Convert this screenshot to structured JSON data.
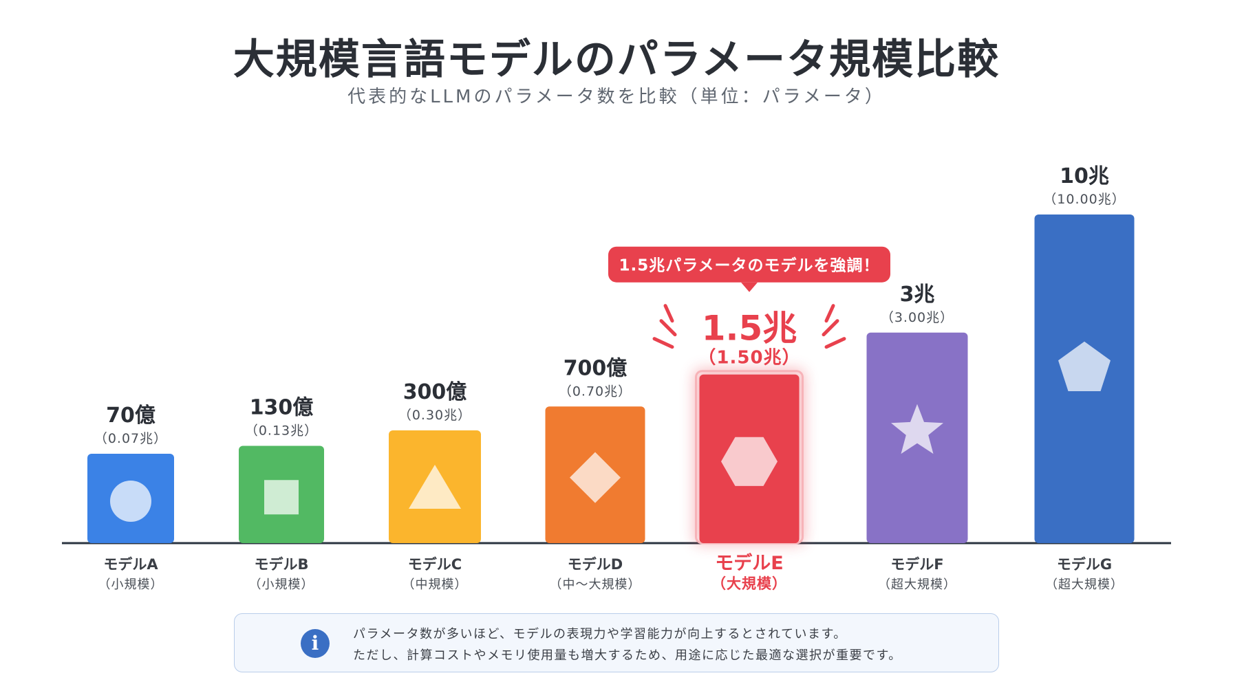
{
  "title": "大規模言語モデルのパラメータ規模比較",
  "subtitle": "代表的なLLMのパラメータ数を比較（単位：パラメータ）",
  "callout": "1.5兆パラメータのモデルを強調！",
  "note": {
    "icon": "info-icon",
    "line1": "パラメータ数が多いほど、モデルの表現力や学習能力が向上するとされています。",
    "line2": "ただし、計算コストやメモリ使用量も増大するため、用途に応じた最適な選択が重要です。"
  },
  "colors": {
    "highlight": "#e8414d",
    "axis": "#2b3440"
  },
  "chart_data": {
    "type": "bar",
    "title": "大規模言語モデルのパラメータ規模比較",
    "subtitle": "代表的なLLMのパラメータ数を比較（単位：パラメータ）",
    "categories": [
      "モデルA",
      "モデルB",
      "モデルC",
      "モデルD",
      "モデルE",
      "モデルF",
      "モデルG"
    ],
    "sublabels": [
      "（小規模）",
      "（小規模）",
      "（中規模）",
      "（中〜大規模）",
      "（大規模）",
      "（超大規模）",
      "（超大規模）"
    ],
    "values": [
      0.07,
      0.13,
      0.3,
      0.7,
      1.5,
      3.0,
      10.0
    ],
    "value_labels": [
      "70億",
      "130億",
      "300億",
      "700億",
      "1.5兆",
      "3兆",
      "10兆"
    ],
    "value_sublabels": [
      "（0.07兆）",
      "（0.13兆）",
      "（0.30兆）",
      "（0.70兆）",
      "（1.50兆）",
      "（3.00兆）",
      "（10.00兆）"
    ],
    "colors": [
      "#3b82e6",
      "#52b963",
      "#fbb52d",
      "#f07b30",
      "#e8414d",
      "#8872c6",
      "#3a6fc4"
    ],
    "icons": [
      "circle-icon",
      "square-icon",
      "triangle-icon",
      "diamond-icon",
      "hexagon-icon",
      "star-icon",
      "pentagon-icon"
    ],
    "highlight_index": 4,
    "scale": "nonlinear",
    "grid": false
  }
}
